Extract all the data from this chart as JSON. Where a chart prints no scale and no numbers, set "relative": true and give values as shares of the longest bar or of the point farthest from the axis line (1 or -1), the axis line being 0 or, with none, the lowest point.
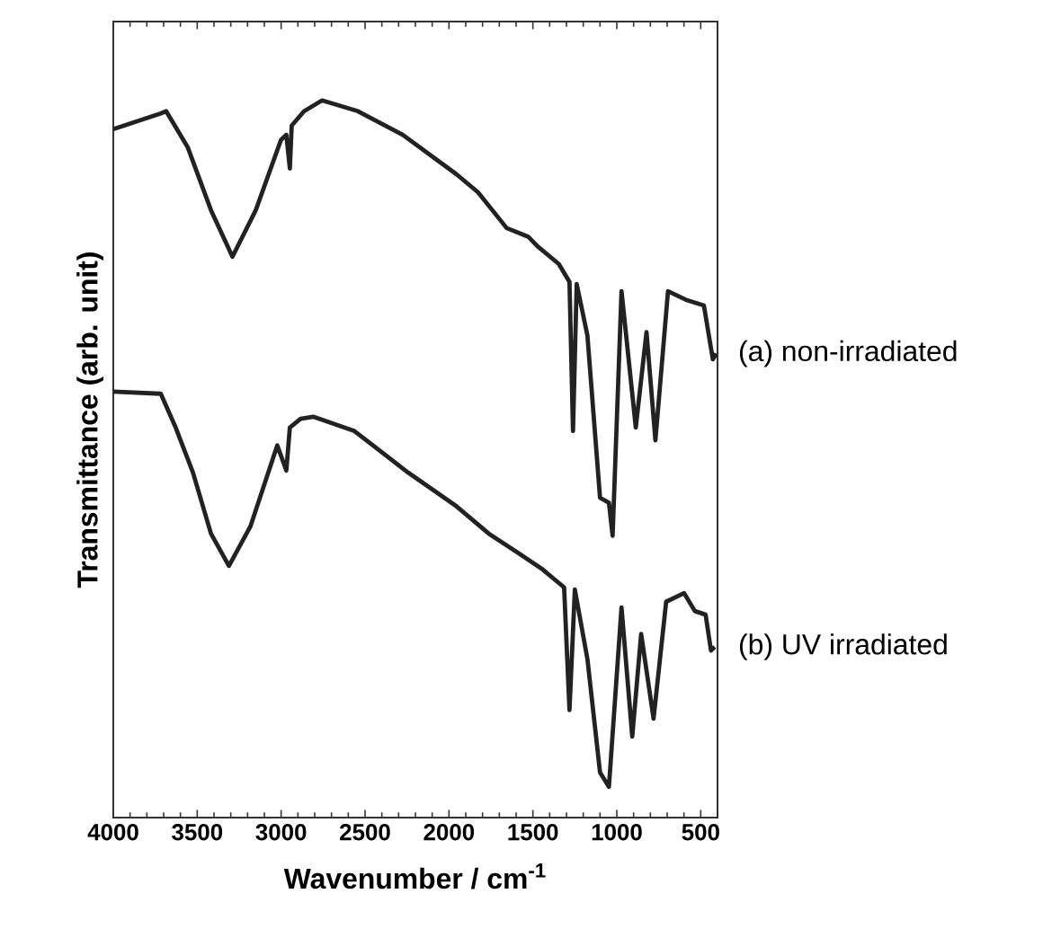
{
  "chart_data": {
    "type": "line",
    "relative": true,
    "xlabel": "Wavenumber / cm$^{-1}$",
    "ylabel": "Transmittance (arb. unit)",
    "xlim": [
      4000,
      400
    ],
    "xticks": [
      4000,
      3500,
      3000,
      2500,
      2000,
      1500,
      1000,
      500
    ],
    "legend": false,
    "grid": false,
    "marker": "none",
    "line_style": "solid",
    "series": [
      {
        "name": "(a) non-irradiated",
        "color": "#222222",
        "x": [
          4000,
          3717,
          3685,
          3557,
          3418,
          3290,
          3151,
          3001,
          2969,
          2948,
          2937,
          2863,
          2756,
          2542,
          2275,
          1955,
          1827,
          1656,
          1528,
          1474,
          1346,
          1282,
          1261,
          1239,
          1175,
          1100,
          1047,
          1025,
          972,
          887,
          823,
          770,
          695,
          588,
          481,
          428,
          407
        ],
        "values": [
          0.96,
          0.982,
          0.985,
          0.935,
          0.847,
          0.782,
          0.847,
          0.945,
          0.952,
          0.905,
          0.965,
          0.985,
          1.0,
          0.985,
          0.952,
          0.897,
          0.872,
          0.822,
          0.81,
          0.797,
          0.772,
          0.747,
          0.539,
          0.744,
          0.672,
          0.446,
          0.439,
          0.393,
          0.734,
          0.544,
          0.677,
          0.526,
          0.734,
          0.722,
          0.714,
          0.639,
          0.647
        ]
      },
      {
        "name": "(b) UV irradiated",
        "color": "#222222",
        "x": [
          4000,
          3717,
          3632,
          3525,
          3418,
          3311,
          3183,
          3023,
          2969,
          2948,
          2884,
          2809,
          2563,
          2243,
          1955,
          1763,
          1581,
          1442,
          1314,
          1282,
          1250,
          1175,
          1100,
          1047,
          972,
          908,
          855,
          781,
          706,
          599,
          535,
          471,
          439,
          417
        ],
        "values": [
          0.594,
          0.591,
          0.546,
          0.481,
          0.396,
          0.351,
          0.406,
          0.519,
          0.484,
          0.544,
          0.556,
          0.559,
          0.539,
          0.481,
          0.434,
          0.396,
          0.368,
          0.346,
          0.321,
          0.15,
          0.318,
          0.221,
          0.063,
          0.043,
          0.293,
          0.113,
          0.256,
          0.138,
          0.301,
          0.313,
          0.288,
          0.283,
          0.233,
          0.238
        ]
      }
    ]
  }
}
